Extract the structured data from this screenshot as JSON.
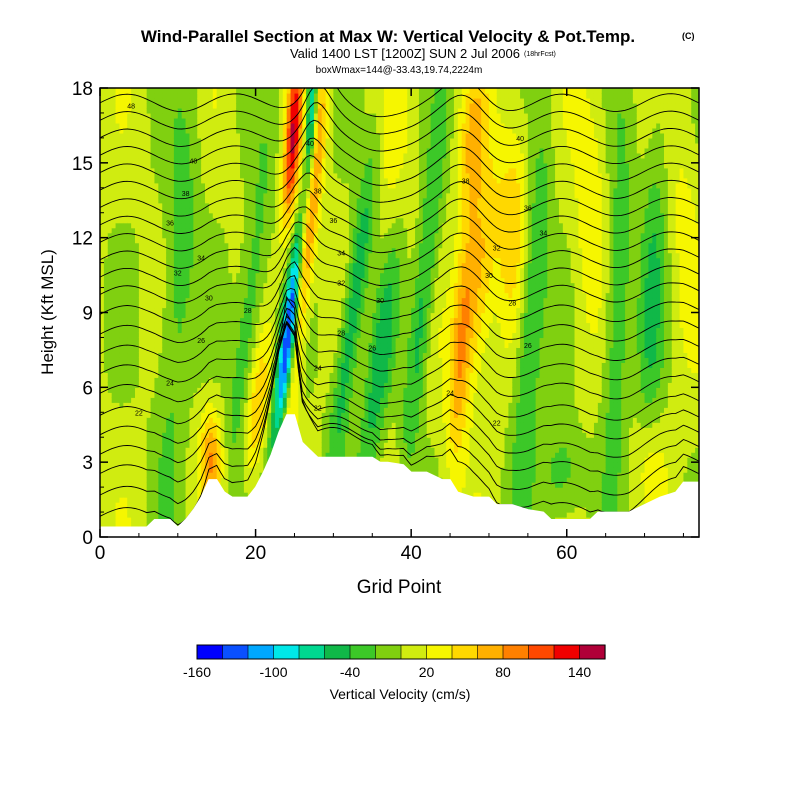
{
  "header": {
    "title": "Wind-Parallel Section at Max W: Vertical Velocity & Pot.Temp.",
    "copyright": "(C)",
    "valid_line": "Valid 1400 LST [1200Z] SUN 2 Jul 2006",
    "forecast_note": "(18hrFcst)",
    "box_line": "boxWmax=144@-33.43,19.74,2224m"
  },
  "chart_data": {
    "type": "heatmap",
    "title": "Wind-Parallel Section at Max W: Vertical Velocity & Pot.Temp.",
    "xlabel": "Grid Point",
    "ylabel": "Height (Kft MSL)",
    "xlim": [
      0,
      77
    ],
    "ylim": [
      0,
      18
    ],
    "x_ticks": [
      {
        "value": 0,
        "label": "0"
      },
      {
        "value": 20,
        "label": "20"
      },
      {
        "value": 40,
        "label": "40"
      },
      {
        "value": 60,
        "label": "60"
      }
    ],
    "y_ticks": [
      {
        "value": 0,
        "label": "0"
      },
      {
        "value": 3,
        "label": "3"
      },
      {
        "value": 6,
        "label": "6"
      },
      {
        "value": 9,
        "label": "9"
      },
      {
        "value": 12,
        "label": "12"
      },
      {
        "value": 15,
        "label": "15"
      },
      {
        "value": 18,
        "label": "18"
      }
    ],
    "colorbar": {
      "label": "Vertical Velocity (cm/s)",
      "colors": [
        "#0000ff",
        "#0a50ff",
        "#00a8ff",
        "#00e8e8",
        "#00d890",
        "#10b848",
        "#3cc828",
        "#80d010",
        "#d0ec10",
        "#f6f600",
        "#ffd800",
        "#ffb000",
        "#ff8000",
        "#ff4800",
        "#f00000",
        "#b00038"
      ],
      "tick_values": [
        -160,
        -100,
        -40,
        20,
        80,
        140
      ],
      "tick_labels": [
        "-160",
        "-100",
        "-40",
        "20",
        "80",
        "140"
      ],
      "range": [
        -160,
        160
      ]
    },
    "terrain": [
      {
        "x": 0,
        "h": 0.4
      },
      {
        "x": 2,
        "h": 0.4
      },
      {
        "x": 4,
        "h": 0.4
      },
      {
        "x": 6,
        "h": 0.4
      },
      {
        "x": 7,
        "h": 0.7
      },
      {
        "x": 9,
        "h": 0.7
      },
      {
        "x": 10,
        "h": 0.4
      },
      {
        "x": 11,
        "h": 0.7
      },
      {
        "x": 12,
        "h": 1.1
      },
      {
        "x": 13,
        "h": 1.6
      },
      {
        "x": 14,
        "h": 2.3
      },
      {
        "x": 15,
        "h": 2.3
      },
      {
        "x": 16,
        "h": 1.8
      },
      {
        "x": 17,
        "h": 1.6
      },
      {
        "x": 18,
        "h": 1.6
      },
      {
        "x": 19,
        "h": 1.6
      },
      {
        "x": 20,
        "h": 2.0
      },
      {
        "x": 21,
        "h": 2.6
      },
      {
        "x": 22,
        "h": 3.3
      },
      {
        "x": 23,
        "h": 4.2
      },
      {
        "x": 24,
        "h": 4.9
      },
      {
        "x": 25,
        "h": 4.9
      },
      {
        "x": 26,
        "h": 3.8
      },
      {
        "x": 27,
        "h": 3.5
      },
      {
        "x": 28,
        "h": 3.2
      },
      {
        "x": 29,
        "h": 3.2
      },
      {
        "x": 30,
        "h": 3.2
      },
      {
        "x": 31,
        "h": 3.2
      },
      {
        "x": 33,
        "h": 3.2
      },
      {
        "x": 35,
        "h": 3.2
      },
      {
        "x": 36,
        "h": 3.0
      },
      {
        "x": 37,
        "h": 3.0
      },
      {
        "x": 39,
        "h": 2.9
      },
      {
        "x": 40,
        "h": 2.6
      },
      {
        "x": 42,
        "h": 2.6
      },
      {
        "x": 44,
        "h": 2.3
      },
      {
        "x": 45,
        "h": 2.3
      },
      {
        "x": 46,
        "h": 1.8
      },
      {
        "x": 48,
        "h": 1.6
      },
      {
        "x": 50,
        "h": 1.6
      },
      {
        "x": 51,
        "h": 1.3
      },
      {
        "x": 53,
        "h": 1.3
      },
      {
        "x": 55,
        "h": 1.1
      },
      {
        "x": 57,
        "h": 1.0
      },
      {
        "x": 58,
        "h": 0.7
      },
      {
        "x": 60,
        "h": 0.7
      },
      {
        "x": 62,
        "h": 0.7
      },
      {
        "x": 63,
        "h": 0.7
      },
      {
        "x": 64,
        "h": 1.0
      },
      {
        "x": 66,
        "h": 1.0
      },
      {
        "x": 68,
        "h": 1.0
      },
      {
        "x": 70,
        "h": 1.3
      },
      {
        "x": 72,
        "h": 1.6
      },
      {
        "x": 74,
        "h": 1.8
      },
      {
        "x": 75,
        "h": 2.2
      },
      {
        "x": 77,
        "h": 2.2
      }
    ],
    "velocity_features": [
      {
        "x": 24.0,
        "z": 7.0,
        "value": -150,
        "sx": 0.9,
        "sz": 3.0,
        "tilt": 0.35
      },
      {
        "x": 25.2,
        "z": 10.5,
        "value": -90,
        "sx": 0.6,
        "sz": 3.0,
        "tilt": 0.35
      },
      {
        "x": 27.2,
        "z": 17.0,
        "value": -110,
        "sx": 0.5,
        "sz": 2.5,
        "tilt": 0.1
      },
      {
        "x": 25.8,
        "z": 10.0,
        "value": 140,
        "sx": 0.8,
        "sz": 6.0,
        "tilt": 0.35
      },
      {
        "x": 24.8,
        "z": 16.0,
        "value": 130,
        "sx": 0.7,
        "sz": 2.5,
        "tilt": 0.2
      },
      {
        "x": 14.2,
        "z": 3.2,
        "value": 70,
        "sx": 1.0,
        "sz": 1.4,
        "tilt": 0.0
      },
      {
        "x": 20.0,
        "z": 5.0,
        "value": 60,
        "sx": 1.2,
        "sz": 2.0,
        "tilt": 0.3
      },
      {
        "x": 46.5,
        "z": 8.0,
        "value": 80,
        "sx": 1.0,
        "sz": 3.5,
        "tilt": 0.2
      },
      {
        "x": 49.0,
        "z": 10.5,
        "value": 60,
        "sx": 1.2,
        "sz": 3.0,
        "tilt": 0.2
      },
      {
        "x": 48.0,
        "z": 16.0,
        "value": 50,
        "sx": 1.2,
        "sz": 2.0,
        "tilt": 0.2
      },
      {
        "x": 53.0,
        "z": 13.0,
        "value": 50,
        "sx": 1.5,
        "sz": 3.0,
        "tilt": 0.1
      },
      {
        "x": 32.5,
        "z": 9.0,
        "value": -70,
        "sx": 1.0,
        "sz": 5.0,
        "tilt": 0.4
      },
      {
        "x": 36.0,
        "z": 7.0,
        "value": -60,
        "sx": 1.2,
        "sz": 4.0,
        "tilt": 0.4
      },
      {
        "x": 41.5,
        "z": 9.5,
        "value": -60,
        "sx": 1.0,
        "sz": 5.0,
        "tilt": 0.3
      },
      {
        "x": 55.5,
        "z": 9.0,
        "value": -60,
        "sx": 1.2,
        "sz": 5.0,
        "tilt": 0.2
      },
      {
        "x": 19.0,
        "z": 8.0,
        "value": -50,
        "sx": 1.2,
        "sz": 5.0,
        "tilt": 0.3
      },
      {
        "x": 10.0,
        "z": 10.0,
        "value": -40,
        "sx": 1.5,
        "sz": 6.0,
        "tilt": 0.2
      },
      {
        "x": 66.5,
        "z": 9.0,
        "value": -50,
        "sx": 1.2,
        "sz": 5.0,
        "tilt": 0.1
      },
      {
        "x": 71.0,
        "z": 10.0,
        "value": -40,
        "sx": 1.2,
        "sz": 6.0,
        "tilt": 0.1
      },
      {
        "x": 59.5,
        "z": 2.5,
        "value": -40,
        "sx": 2.0,
        "sz": 1.5,
        "tilt": 0.0
      },
      {
        "x": 63.0,
        "z": 13.0,
        "value": 30,
        "sx": 1.5,
        "sz": 4.0,
        "tilt": 0.1
      },
      {
        "x": 75.0,
        "z": 13.0,
        "value": 20,
        "sx": 1.5,
        "sz": 4.0,
        "tilt": 0.0
      },
      {
        "x": 70.5,
        "z": 3.0,
        "value": 30,
        "sx": 1.5,
        "sz": 1.5,
        "tilt": 0.0
      },
      {
        "x": 38.0,
        "z": 14.0,
        "value": 20,
        "sx": 2.0,
        "sz": 5.0,
        "tilt": 0.2
      }
    ],
    "theta_contours": {
      "levels": [
        {
          "value": 14,
          "z": 0.6
        },
        {
          "value": 16,
          "z": 1.5
        },
        {
          "value": 18,
          "z": 2.4
        },
        {
          "value": 20,
          "z": 3.2
        },
        {
          "value": 22,
          "z": 4.0
        },
        {
          "value": 24,
          "z": 4.8
        },
        {
          "value": 26,
          "z": 5.7
        },
        {
          "value": 28,
          "z": 6.5
        },
        {
          "value": 30,
          "z": 7.3
        },
        {
          "value": 32,
          "z": 8.1
        },
        {
          "value": 34,
          "z": 8.9
        },
        {
          "value": 36,
          "z": 9.7
        },
        {
          "value": 38,
          "z": 10.4
        },
        {
          "value": 40,
          "z": 11.1
        },
        {
          "value": 42,
          "z": 11.8
        },
        {
          "value": 44,
          "z": 12.5
        },
        {
          "value": 46,
          "z": 13.2
        },
        {
          "value": 48,
          "z": 13.9
        },
        {
          "value": 50,
          "z": 14.6
        },
        {
          "value": 52,
          "z": 15.3
        },
        {
          "value": 54,
          "z": 16.0
        },
        {
          "value": 56,
          "z": 16.7
        },
        {
          "value": 58,
          "z": 17.4
        }
      ],
      "labels": [
        {
          "x": 4,
          "z": 17.3,
          "text": "48"
        },
        {
          "x": 12,
          "z": 15.1,
          "text": "40"
        },
        {
          "x": 11,
          "z": 13.8,
          "text": "38"
        },
        {
          "x": 9,
          "z": 12.6,
          "text": "36"
        },
        {
          "x": 13,
          "z": 11.2,
          "text": "34"
        },
        {
          "x": 10,
          "z": 10.6,
          "text": "32"
        },
        {
          "x": 14,
          "z": 9.6,
          "text": "30"
        },
        {
          "x": 19,
          "z": 9.1,
          "text": "28"
        },
        {
          "x": 13,
          "z": 7.9,
          "text": "26"
        },
        {
          "x": 9,
          "z": 6.2,
          "text": "24"
        },
        {
          "x": 5,
          "z": 5.0,
          "text": "22"
        },
        {
          "x": 27,
          "z": 15.8,
          "text": "40"
        },
        {
          "x": 28,
          "z": 13.9,
          "text": "38"
        },
        {
          "x": 30,
          "z": 12.7,
          "text": "36"
        },
        {
          "x": 31,
          "z": 11.4,
          "text": "34"
        },
        {
          "x": 31,
          "z": 10.2,
          "text": "32"
        },
        {
          "x": 31,
          "z": 8.2,
          "text": "28"
        },
        {
          "x": 35,
          "z": 7.6,
          "text": "26"
        },
        {
          "x": 28,
          "z": 6.8,
          "text": "24"
        },
        {
          "x": 28,
          "z": 5.2,
          "text": "22"
        },
        {
          "x": 36,
          "z": 9.5,
          "text": "30"
        },
        {
          "x": 54,
          "z": 16.0,
          "text": "40"
        },
        {
          "x": 47,
          "z": 14.3,
          "text": "38"
        },
        {
          "x": 55,
          "z": 13.2,
          "text": "36"
        },
        {
          "x": 57,
          "z": 12.2,
          "text": "34"
        },
        {
          "x": 51,
          "z": 11.6,
          "text": "32"
        },
        {
          "x": 50,
          "z": 10.5,
          "text": "30"
        },
        {
          "x": 53,
          "z": 9.4,
          "text": "28"
        },
        {
          "x": 55,
          "z": 7.7,
          "text": "26"
        },
        {
          "x": 45,
          "z": 5.8,
          "text": "24"
        },
        {
          "x": 51,
          "z": 4.6,
          "text": "22"
        }
      ]
    }
  }
}
